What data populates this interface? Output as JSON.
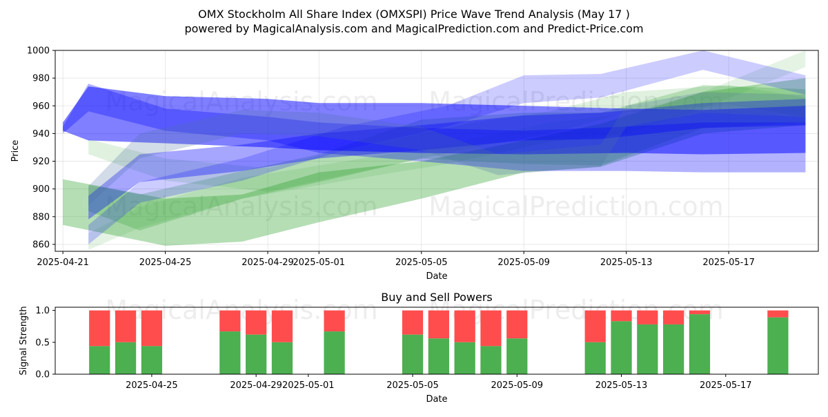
{
  "title_line1": "OMX Stockholm All Share Index (OMXSPI) Price Wave Trend Analysis (May 17 )",
  "title_line2": "powered by MagicalAnalysis.com and MagicalPrediction.com and Predict-Price.com",
  "watermarks": [
    "MagicalAnalysis.com",
    "MagicalPrediction.com"
  ],
  "colors": {
    "green_band": "#2ca02c",
    "blue_band": "#0000ff",
    "slate_band": "#4a6fa5",
    "buy": "#4caf50",
    "sell": "#ff4d4d"
  },
  "chart_data": [
    {
      "type": "area",
      "title": "",
      "xlabel": "Date",
      "ylabel": "Price",
      "xlim": [
        "2025-04-20",
        "2025-05-20"
      ],
      "ylim": [
        855,
        1000
      ],
      "x_ticks": [
        "2025-04-21",
        "2025-04-25",
        "2025-04-29",
        "2025-05-01",
        "2025-05-05",
        "2025-05-09",
        "2025-05-13",
        "2025-05-17"
      ],
      "y_ticks": [
        860,
        880,
        900,
        920,
        940,
        960,
        980,
        1000
      ],
      "grid": true,
      "series": [
        {
          "color": "green",
          "alpha": 0.35,
          "x": [
            "2025-04-21",
            "2025-04-25",
            "2025-04-28",
            "2025-05-01",
            "2025-05-05",
            "2025-05-09",
            "2025-05-12",
            "2025-05-16",
            "2025-05-20"
          ],
          "upper": [
            907,
            893,
            896,
            912,
            920,
            935,
            947,
            970,
            980
          ],
          "lower": [
            874,
            859,
            862,
            876,
            893,
            912,
            916,
            940,
            946
          ]
        },
        {
          "color": "green",
          "alpha": 0.25,
          "x": [
            "2025-04-22",
            "2025-04-24",
            "2025-04-28",
            "2025-05-01",
            "2025-05-05",
            "2025-05-09",
            "2025-05-12",
            "2025-05-16",
            "2025-05-20"
          ],
          "upper": [
            903,
            896,
            913,
            925,
            950,
            955,
            955,
            975,
            972
          ],
          "lower": [
            884,
            870,
            893,
            905,
            922,
            918,
            917,
            944,
            948
          ]
        },
        {
          "color": "green",
          "alpha": 0.15,
          "x": [
            "2025-04-22",
            "2025-04-25",
            "2025-04-29",
            "2025-05-03",
            "2025-05-07",
            "2025-05-10",
            "2025-05-13",
            "2025-05-17",
            "2025-05-20"
          ],
          "upper": [
            936,
            922,
            915,
            932,
            948,
            956,
            970,
            975,
            966
          ],
          "lower": [
            925,
            906,
            898,
            914,
            930,
            940,
            955,
            961,
            952
          ]
        },
        {
          "color": "green",
          "alpha": 0.12,
          "x": [
            "2025-04-22",
            "2025-04-24",
            "2025-04-28",
            "2025-05-02",
            "2025-05-06",
            "2025-05-10",
            "2025-05-13",
            "2025-05-16",
            "2025-05-20"
          ],
          "upper": [
            868,
            887,
            908,
            920,
            932,
            948,
            954,
            970,
            1000
          ],
          "lower": [
            856,
            872,
            893,
            906,
            918,
            934,
            940,
            958,
            988
          ]
        },
        {
          "color": "blue",
          "alpha": 0.5,
          "x": [
            "2025-04-21",
            "2025-04-22",
            "2025-04-25",
            "2025-04-29",
            "2025-05-01",
            "2025-05-05",
            "2025-05-09",
            "2025-05-13",
            "2025-05-16",
            "2025-05-20"
          ],
          "upper": [
            948,
            974,
            967,
            965,
            962,
            962,
            960,
            958,
            957,
            960
          ],
          "lower": [
            942,
            935,
            933,
            930,
            928,
            926,
            925,
            926,
            925,
            926
          ]
        },
        {
          "color": "blue",
          "alpha": 0.3,
          "x": [
            "2025-04-21",
            "2025-04-22",
            "2025-04-25",
            "2025-04-29",
            "2025-05-01",
            "2025-05-05",
            "2025-05-09",
            "2025-05-13",
            "2025-05-16",
            "2025-05-20"
          ],
          "upper": [
            945,
            976,
            958,
            952,
            948,
            944,
            942,
            945,
            948,
            948
          ],
          "lower": [
            940,
            956,
            942,
            935,
            926,
            920,
            913,
            913,
            912,
            912
          ]
        },
        {
          "color": "blue",
          "alpha": 0.35,
          "x": [
            "2025-04-22",
            "2025-04-24",
            "2025-04-28",
            "2025-05-01",
            "2025-05-05",
            "2025-05-09",
            "2025-05-12",
            "2025-05-16",
            "2025-05-20"
          ],
          "upper": [
            895,
            925,
            932,
            940,
            946,
            953,
            955,
            962,
            965
          ],
          "lower": [
            878,
            905,
            913,
            922,
            928,
            935,
            936,
            944,
            946
          ]
        },
        {
          "color": "blue",
          "alpha": 0.2,
          "x": [
            "2025-04-22",
            "2025-04-24",
            "2025-04-28",
            "2025-05-02",
            "2025-05-06",
            "2025-05-09",
            "2025-05-12",
            "2025-05-16",
            "2025-05-20"
          ],
          "upper": [
            874,
            905,
            922,
            945,
            960,
            982,
            983,
            1000,
            982
          ],
          "lower": [
            860,
            890,
            906,
            928,
            945,
            962,
            966,
            986,
            968
          ]
        },
        {
          "color": "slate",
          "alpha": 0.25,
          "x": [
            "2025-04-22",
            "2025-04-24",
            "2025-04-28",
            "2025-05-01",
            "2025-05-05",
            "2025-05-08",
            "2025-05-12",
            "2025-05-13",
            "2025-05-16",
            "2025-05-20"
          ],
          "upper": [
            902,
            940,
            957,
            955,
            945,
            925,
            932,
            960,
            970,
            968
          ],
          "lower": [
            888,
            922,
            940,
            938,
            928,
            910,
            916,
            945,
            955,
            952
          ]
        }
      ]
    },
    {
      "type": "bar",
      "title": "Buy and Sell Powers",
      "xlabel": "Date",
      "ylabel": "Signal Strength",
      "ylim": [
        0,
        1.05
      ],
      "x_ticks": [
        "2025-04-25",
        "2025-04-29",
        "2025-05-01",
        "2025-05-05",
        "2025-05-09",
        "2025-05-13",
        "2025-05-17"
      ],
      "y_ticks": [
        "0.0",
        "0.5",
        "1.0"
      ],
      "series_names": [
        "Buy",
        "Sell"
      ],
      "bars": [
        {
          "date": "2025-04-23",
          "buy": 0.44
        },
        {
          "date": "2025-04-24",
          "buy": 0.5
        },
        {
          "date": "2025-04-25",
          "buy": 0.44
        },
        {
          "date": "2025-04-28",
          "buy": 0.67
        },
        {
          "date": "2025-04-29",
          "buy": 0.62
        },
        {
          "date": "2025-04-30",
          "buy": 0.5
        },
        {
          "date": "2025-05-02",
          "buy": 0.67
        },
        {
          "date": "2025-05-05",
          "buy": 0.62
        },
        {
          "date": "2025-05-06",
          "buy": 0.56
        },
        {
          "date": "2025-05-07",
          "buy": 0.5
        },
        {
          "date": "2025-05-08",
          "buy": 0.44
        },
        {
          "date": "2025-05-09",
          "buy": 0.56
        },
        {
          "date": "2025-05-12",
          "buy": 0.5
        },
        {
          "date": "2025-05-13",
          "buy": 0.83
        },
        {
          "date": "2025-05-14",
          "buy": 0.78
        },
        {
          "date": "2025-05-15",
          "buy": 0.78
        },
        {
          "date": "2025-05-16",
          "buy": 0.94
        },
        {
          "date": "2025-05-19",
          "buy": 0.89
        }
      ]
    }
  ]
}
